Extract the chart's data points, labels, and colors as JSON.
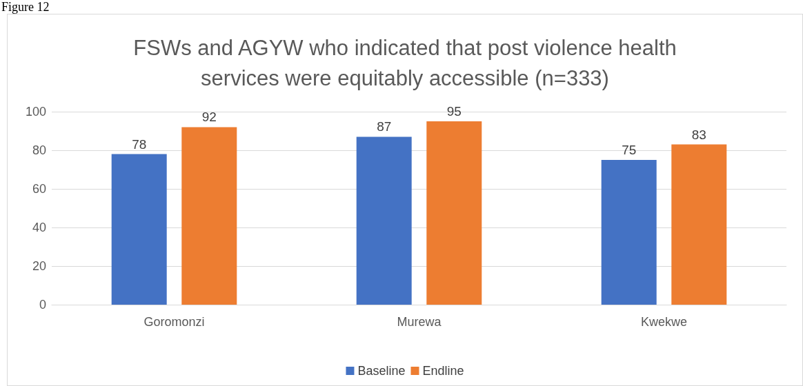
{
  "chart_data": {
    "type": "bar",
    "title": "FSWs and AGYW who indicated that post violence health\nservices were equitably accessible (n=333)",
    "annotations": [
      "Figure 12"
    ],
    "categories": [
      "Goromonzi",
      "Murewa",
      "Kwekwe"
    ],
    "series": [
      {
        "name": "Baseline",
        "color": "#4472c4",
        "values": [
          78,
          87,
          75
        ]
      },
      {
        "name": "Endline",
        "color": "#ed7d31",
        "values": [
          92,
          95,
          83
        ]
      }
    ],
    "ylim": [
      0,
      100
    ],
    "yticks": [
      0,
      20,
      40,
      60,
      80,
      100
    ],
    "grid": "y",
    "legend": "bottom",
    "data_labels": true
  }
}
